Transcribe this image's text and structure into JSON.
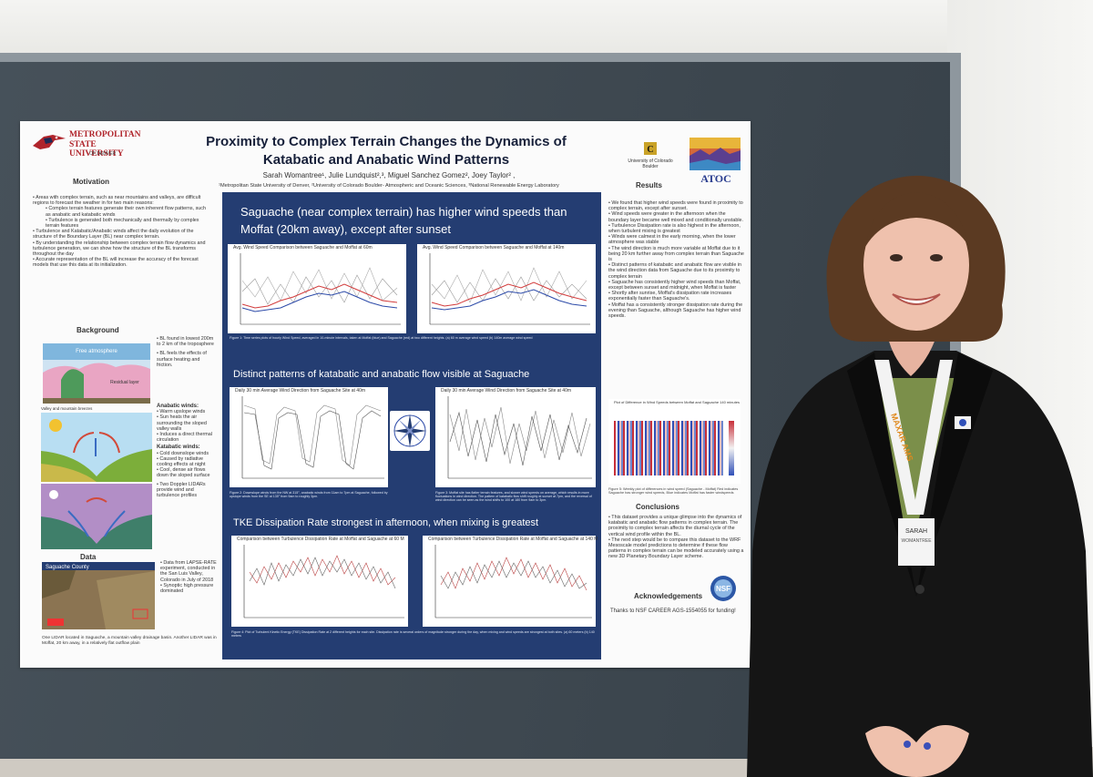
{
  "poster": {
    "logo": {
      "line1": "METROPOLITAN",
      "line2": "STATE UNIVERSITY",
      "line3": "OF DENVER"
    },
    "title_line1": "Proximity to Complex Terrain Changes the Dynamics of",
    "title_line2": "Katabatic and Anabatic  Wind Patterns",
    "authors": "Sarah Womantree¹, Julie Lundquist²,³, Miguel Sanchez Gomez², Joey Taylor² ,",
    "affiliations": "¹Metropolitan State University of Denver, ²University of Colorado Boulder- Atmospheric and Oceanic Sciences, ³National Renewable Energy Laboratory",
    "cu_logo": {
      "line1": "University of Colorado",
      "line2": "Boulder"
    },
    "atoc_logo": "ATOC",
    "motivation": {
      "heading": "Motivation",
      "bullets": [
        "Areas with complex terrain, such as near mountains and valleys, are difficult regions to forecast the weather in for two main reasons:",
        "Complex terrain features generate their own inherent flow patterns, such as anabatic and katabatic winds",
        "Turbulence is generated both mechanically and thermally by complex terrain features",
        "Turbulence and Katabatic/Anabatic winds affect the daily evolution of the structure of the Boundary Layer (BL) near complex terrain.",
        "By understanding the relationship between complex terrain flow dynamics and turbulence generation, we can show how the structure of the BL transforms throughout the day",
        "Accurate representation of the BL will increase the accuracy of the forecast models that use this data at its initialization."
      ]
    },
    "background": {
      "heading": "Background",
      "figure_labels": {
        "free_atmosphere": "Free atmosphere",
        "residual": "Residual layer",
        "valley": "Valley and mountain breezes"
      },
      "bl_bullets": [
        "BL found in lowest 200m to 2 km of the troposphere",
        "BL feels the effects of surface heating and friction."
      ],
      "anabatic_heading": "Anabatic winds:",
      "anabatic_bullets": [
        "Warm upslope winds",
        "Sun heats the air surrounding the sloped valley walls",
        "Induces a direct thermal circulation"
      ],
      "katabatic_heading": "Katabatic winds:",
      "katabatic_bullets": [
        "Cold downslope winds",
        "Caused by radiative cooling effects at night",
        "Cool, dense air flows down the sloped surface"
      ],
      "lidar_bullet": "Two Doppler LIDARs provide wind and turbulence profiles"
    },
    "data": {
      "heading": "Data",
      "map_label": "Saguache County",
      "bullets": [
        "Data from LAPSE-RATE experiment, conducted in the San Luis Valley, Colorado in July of 2018",
        "Synoptic high pressure dominated"
      ],
      "map_caption": "One LIDAR located in Saguache, a mountain valley drainage basin. Another LIDAR was in Moffat, 20 km away, in a relatively flat outflow plain"
    },
    "panel": {
      "heading1": "Saguache (near complex terrain) has higher wind speeds than Moffat (20km away), except after sunset",
      "plot1_title": "Avg. Wind Speed Comparison between Saguache and Moffat at 60m",
      "plot2_title": "Avg. Wind Speed Comparison between Saguache and Moffat at 140m",
      "caption1": "Figure 1: Time series plots of hourly Wind Speed, averaged in 10-minute intervals, taken at Moffat (blue) and Saguache (red) at two different heights. (a) 60 m average wind speed (b) 140m average wind speed",
      "heading2": "Distinct patterns of katabatic and anabatic flow visible at Saguache",
      "plot3_title": "Daily 30 min Average Wind Direction from Saguache Site at 40m",
      "plot4_title": "Daily 30 min Average Wind Direction from Saguache Site at 40m",
      "caption2": "Figure 2: Downslope winds from the NW at 315°, anabatic winds from 11am to 7pm at Saguache, followed by upslope winds from the SE at 135° from 9am to roughly 3pm.",
      "caption3": "Figure 3: Moffat site has flatter terrain features, and slower wind speeds on average, which results in more fluctuations in wind direction. The pattern of katabatic flow shift roughly at sunset at 7pm, and the reversal of wind direction can be seen as the wind shifts to 100 at 180 from 9am to 3pm.",
      "heading3": "TKE Dissipation Rate strongest in afternoon, when mixing is greatest",
      "plot5_title": "Comparison between Turbulence Dissipation Rate at Moffat and Saguache at 60 M",
      "plot6_title": "Comparison between Turbulence Dissipation Rate at Moffat and Saguache at 140 M",
      "caption4": "Figure 4: Plot of Turbulent Kinetic Energy (TKE) Dissipation Rate at 2 different heights for each site. Dissipation rate is several orders of magnitude stronger during the day, when mixing and wind speeds are strongest at both sites. (a) 60 meters (b) 140 meters"
    },
    "results": {
      "heading": "Results",
      "bullets": [
        "We found that higher wind speeds were found in proximity to complex terrain, except after sunset.",
        "Wind speeds were greater in the afternoon when the boundary layer became well mixed and conditionally unstable.",
        "Turbulence Dissipation rate is also highest in the afternoon, when turbulent mixing is greatest",
        "Winds were calmest in the early morning, when the lower atmosphere was stable",
        "The wind direction is much more variable at Moffat due to it being 20 km further away from complex terrain than Saguache is",
        "Distinct patterns of katabatic and anabatic flow are visible in the wind direction data from Saguache due to its proximity to complex terrain",
        "Saguache has consistently higher wind speeds than Moffat, except between sunset and midnight, when Moffat is faster",
        "Shortly after sunrise, Moffat's dissipation rate increases exponentially faster than Saguache's.",
        "Moffat has a consistently stronger dissipation rate during the evening than Saguache, although Saguache has higher wind speeds."
      ],
      "plot_title": "Plot of Difference in Wind Speeds between Moffat and Saguache 140 minutes",
      "caption": "Figure 5: Weekly plot of differences in wind speed (Saguache - Moffat) Red indicates Saguache has stronger wind speeds, Blue indicates Moffat has faster windspeeds"
    },
    "conclusions": {
      "heading": "Conclusions",
      "bullets": [
        "This dataset provides a unique glimpse into the dynamics of katabatic and anabatic flow patterns in complex terrain. The proximity to complex terrain affects the diurnal cycle of the vertical wind profile within the BL.",
        "The next step would be to compare this dataset to the WRF Mesoscale model predictions to determine if these flow patterns in complex terrain can be modeled accurately using a new 3D Planetary Boundary Layer scheme."
      ]
    },
    "acknowledgements": {
      "heading": "Acknowledgements",
      "text": "Thanks to NSF CAREER AGS-1554055 for funding!",
      "nsf": "NSF"
    }
  },
  "badge": {
    "name": "SARAH",
    "surname": "WOMANTREE",
    "lanyard": "MAXAR  AMS"
  },
  "colors": {
    "board": "#3f4a53",
    "panel": "#243d72",
    "title": "#17203a",
    "msu_red": "#b0242b",
    "jacket": "#141414"
  }
}
